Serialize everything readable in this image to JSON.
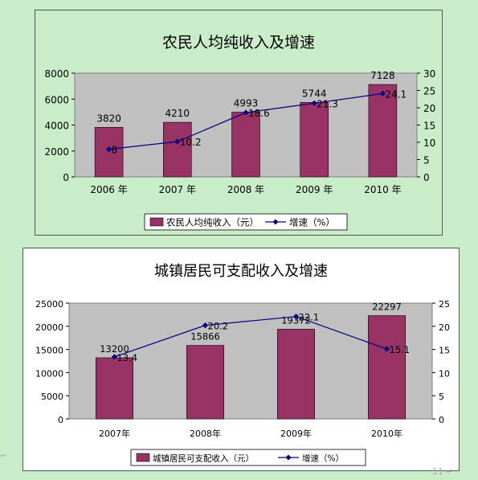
{
  "chart_data": [
    {
      "type": "bar",
      "title": "农民人均纯收入及增速",
      "categories": [
        "2006 年",
        "2007 年",
        "2008 年",
        "2009 年",
        "2010 年"
      ],
      "series": [
        {
          "name": "农民人均纯收入（元）",
          "type": "bar",
          "axis": "left",
          "values": [
            3820,
            4210,
            4993,
            5744,
            7128
          ],
          "labels": [
            "3820",
            "4210",
            "4993",
            "5744",
            "7128"
          ]
        },
        {
          "name": "增速（%）",
          "type": "line",
          "axis": "right",
          "values": [
            8,
            10.2,
            18.6,
            21.3,
            24.1
          ],
          "labels": [
            "8",
            "10.2",
            "18.6",
            "21.3",
            "24.1"
          ]
        }
      ],
      "ylim": [
        0,
        8000
      ],
      "yticks": [
        "0",
        "2000",
        "4000",
        "6000",
        "8000"
      ],
      "y2lim": [
        0,
        30
      ],
      "y2ticks": [
        "0",
        "5",
        "10",
        "15",
        "20",
        "25",
        "30"
      ],
      "grid": false,
      "legend": "bottom",
      "colors": {
        "bar": "#993366",
        "line": "#000080",
        "plot_bg": "#c0c0c0"
      }
    },
    {
      "type": "bar",
      "title": "城镇居民可支配收入及增速",
      "categories": [
        "2007年",
        "2008年",
        "2009年",
        "2010年"
      ],
      "series": [
        {
          "name": "城镇居民可支配收入（元）",
          "type": "bar",
          "axis": "left",
          "values": [
            13200,
            15866,
            19372,
            22297
          ],
          "labels": [
            "13200",
            "15866",
            "19372",
            "22297"
          ]
        },
        {
          "name": "增速（%）",
          "type": "line",
          "axis": "right",
          "values": [
            13.4,
            20.2,
            22.1,
            15.1
          ],
          "labels": [
            "13.4",
            "20.2",
            "22.1",
            "15.1"
          ]
        }
      ],
      "ylim": [
        0,
        25000
      ],
      "yticks": [
        "0",
        "5000",
        "10000",
        "15000",
        "20000",
        "25000"
      ],
      "y2lim": [
        0,
        25
      ],
      "y2ticks": [
        "0",
        "5",
        "10",
        "15",
        "20",
        "25"
      ],
      "grid": false,
      "legend": "bottom",
      "colors": {
        "bar": "#993366",
        "line": "#000080",
        "plot_bg": "#c0c0c0"
      }
    }
  ],
  "page": {
    "corner_mark": "⌐",
    "page_number": "11 ↵"
  }
}
